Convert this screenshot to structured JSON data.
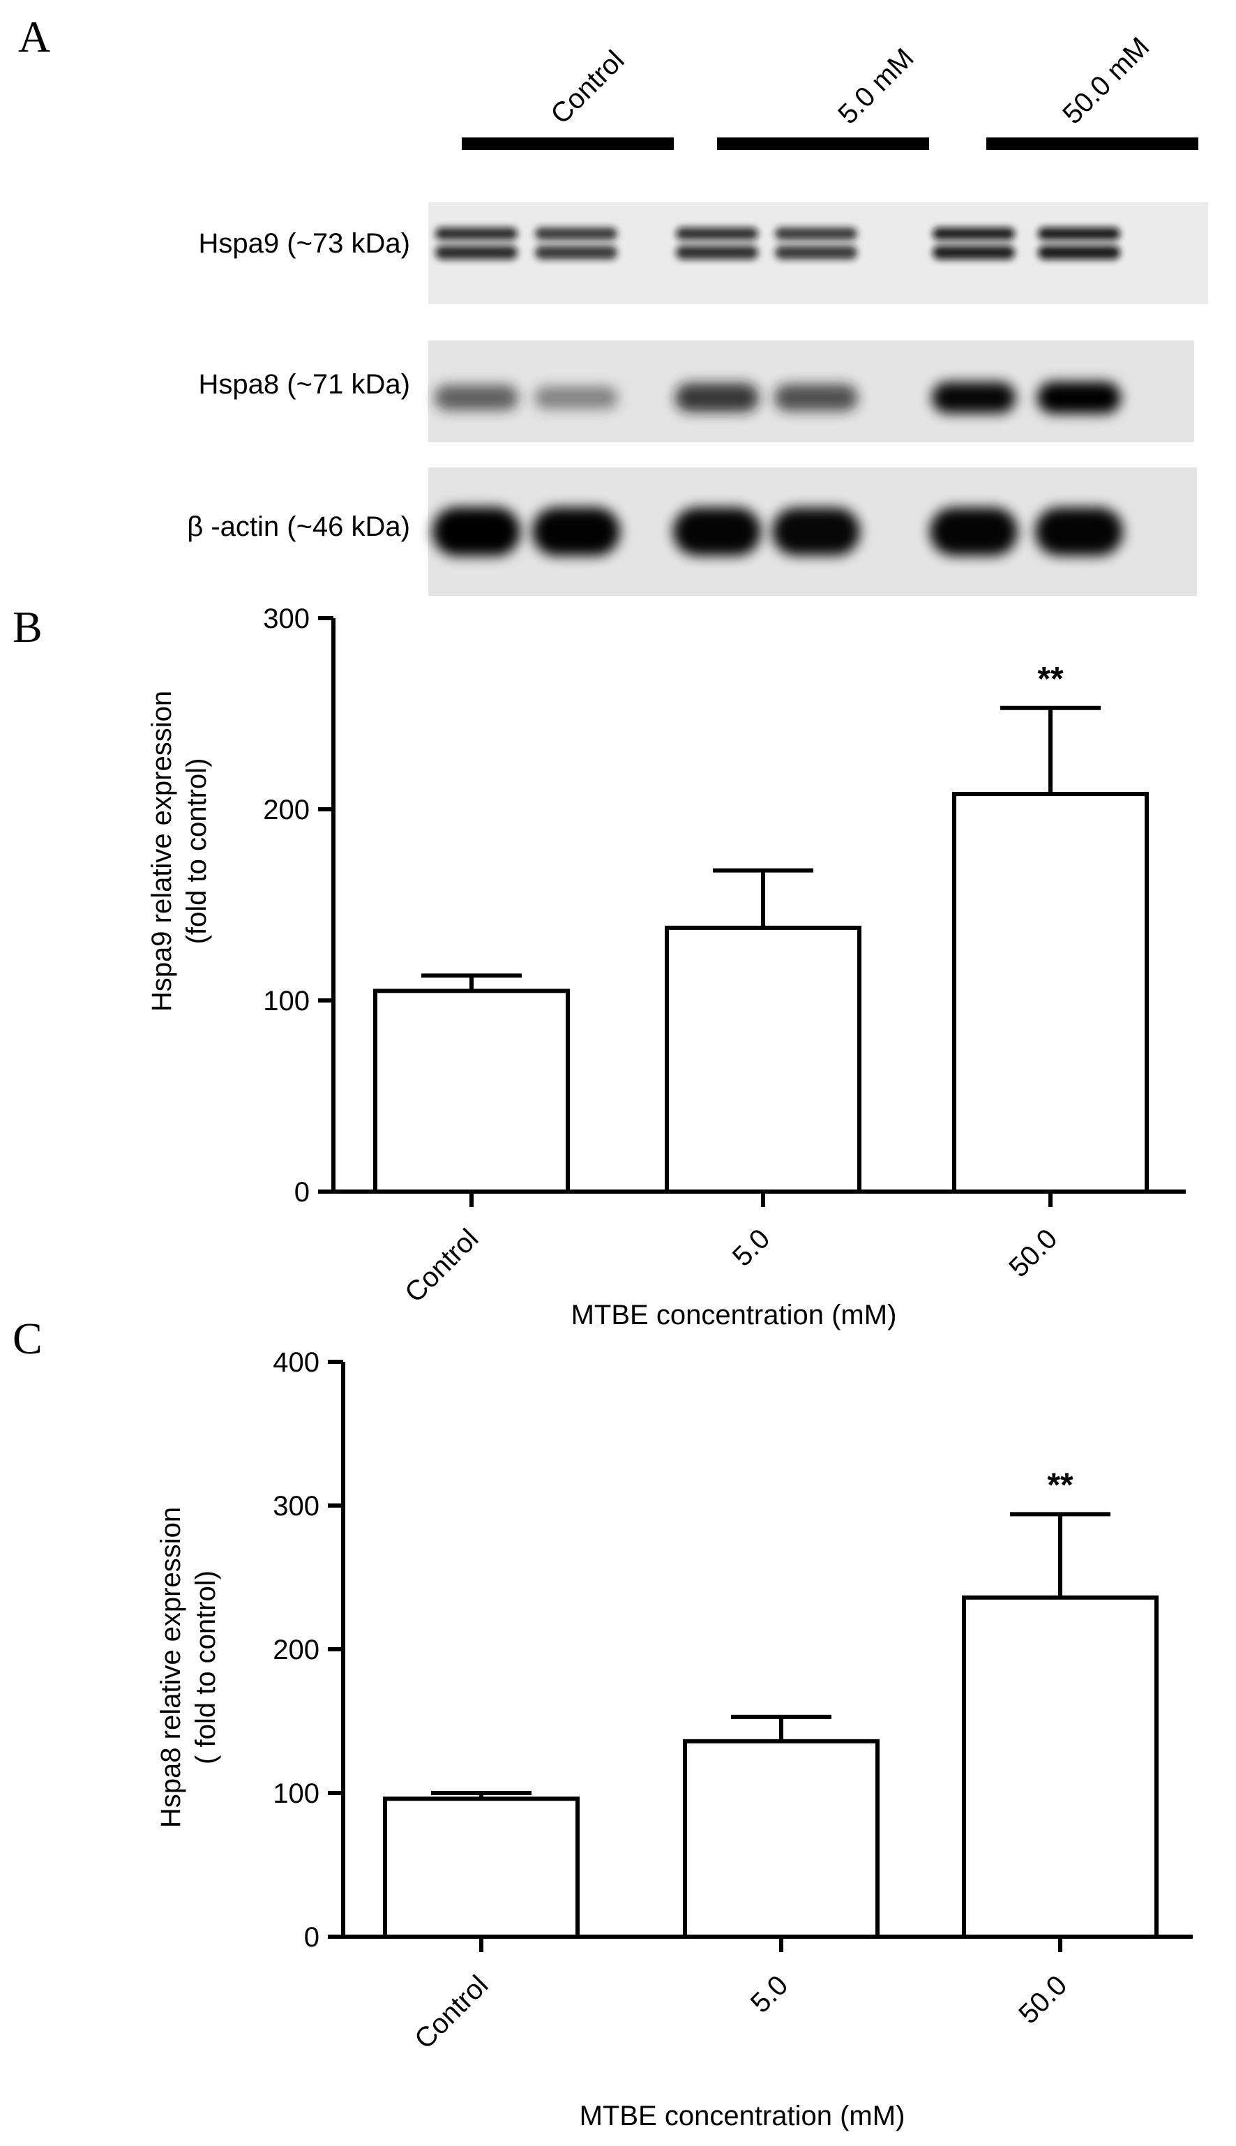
{
  "panels": {
    "a": "A",
    "b": "B",
    "c": "C"
  },
  "blot": {
    "lane_groups": [
      "Control",
      "5.0 mM",
      "50.0 mM"
    ],
    "rows": [
      {
        "label": "Hspa9 (~73 kDa)",
        "intensities": [
          0.78,
          0.72,
          0.76,
          0.72,
          0.88,
          0.9
        ]
      },
      {
        "label": "Hspa8 (~71 kDa)",
        "intensities": [
          0.5,
          0.3,
          0.75,
          0.6,
          0.95,
          1.0
        ]
      },
      {
        "label": "β -actin (~46 kDa)",
        "intensities": [
          1.0,
          0.98,
          0.97,
          0.95,
          0.97,
          0.97
        ]
      }
    ]
  },
  "chart_data": [
    {
      "type": "bar",
      "categories": [
        "Control",
        "5.0",
        "50.0"
      ],
      "values": [
        105,
        138,
        208
      ],
      "errors": [
        8,
        30,
        45
      ],
      "significance": [
        "",
        "",
        "**"
      ],
      "xlabel": "MTBE concentration (mM)",
      "ylabel": [
        "Hspa9 relative expression",
        "(fold to control)"
      ],
      "ylim": [
        0,
        300
      ],
      "yticks": [
        0,
        100,
        200,
        300
      ],
      "grid": false,
      "fill": "#ffffff",
      "stroke": "#000000"
    },
    {
      "type": "bar",
      "categories": [
        "Control",
        "5.0",
        "50.0"
      ],
      "values": [
        96,
        136,
        236
      ],
      "errors": [
        4,
        17,
        58
      ],
      "significance": [
        "",
        "",
        "**"
      ],
      "xlabel": "MTBE concentration (mM)",
      "ylabel": [
        "Hspa8 relative expression",
        "( fold to control)"
      ],
      "ylim": [
        0,
        400
      ],
      "yticks": [
        0,
        100,
        200,
        300,
        400
      ],
      "grid": false,
      "fill": "#ffffff",
      "stroke": "#000000"
    }
  ]
}
